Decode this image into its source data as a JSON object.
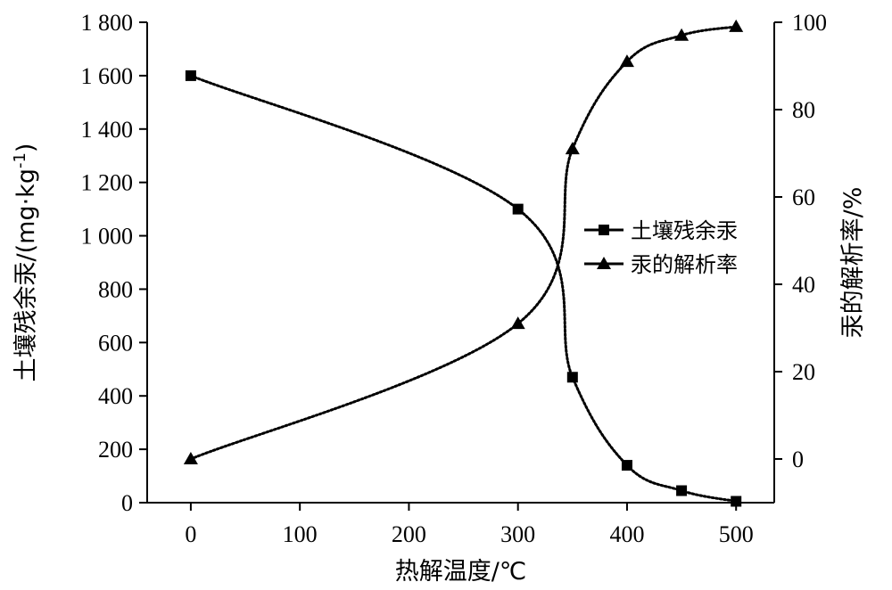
{
  "chart_data": {
    "type": "line",
    "x_axis": {
      "label": "热解温度/℃",
      "range": [
        -40,
        535
      ],
      "ticks": [
        0,
        100,
        200,
        300,
        400,
        500
      ],
      "tick_labels": [
        "0",
        "100",
        "200",
        "300",
        "400",
        "500"
      ]
    },
    "y_left": {
      "label": "土壤残余汞/(mg·kg-1)",
      "range": [
        0,
        1800
      ],
      "ticks": [
        0,
        200,
        400,
        600,
        800,
        1000,
        1200,
        1400,
        1600,
        1800
      ],
      "tick_labels": [
        "0",
        "200",
        "400",
        "600",
        "800",
        "1 000",
        "1 200",
        "1 400",
        "1 600",
        "1 800"
      ]
    },
    "y_right": {
      "label": "汞的解析率/%",
      "range": [
        -10,
        100
      ],
      "ticks": [
        0,
        20,
        40,
        60,
        80,
        100
      ],
      "tick_labels": [
        "0",
        "20",
        "40",
        "60",
        "80",
        "100"
      ]
    },
    "series": [
      {
        "name": "土壤残余汞",
        "axis": "left",
        "marker": "square",
        "x": [
          0,
          300,
          350,
          400,
          450,
          500
        ],
        "y": [
          1600,
          1100,
          470,
          140,
          45,
          5
        ]
      },
      {
        "name": "汞的解析率",
        "axis": "right",
        "marker": "triangle",
        "x": [
          0,
          300,
          350,
          400,
          450,
          500
        ],
        "y": [
          0,
          31,
          71,
          91,
          97,
          99
        ]
      }
    ],
    "legend_position": "right-middle",
    "grid": false,
    "color": "#000000"
  }
}
